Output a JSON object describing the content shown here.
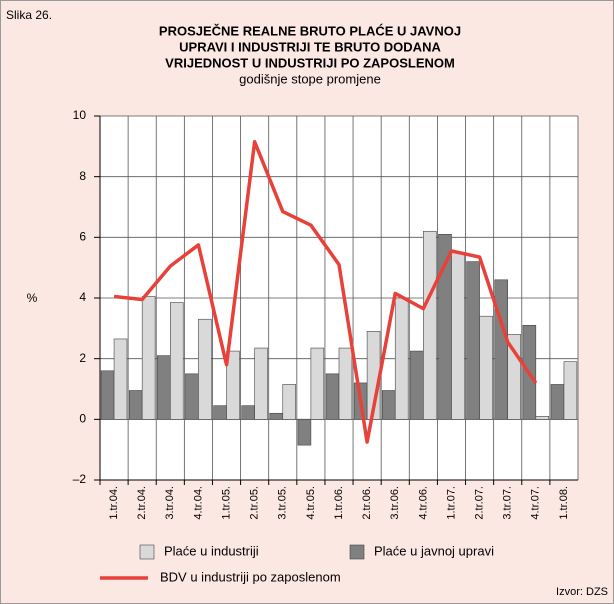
{
  "chart_data": {
    "type": "bar",
    "figure_label": "Slika 26.",
    "title_lines": [
      "PROSJEČNE REALNE BRUTO PLAĆE U JAVNOJ",
      "UPRAVI I INDUSTRIJI TE BRUTO DODANA",
      "VRIJEDNOST U INDUSTRIJI PO ZAPOSLENOM"
    ],
    "subtitle": "godišnje stope promjene",
    "y_label": "%",
    "source": "Izvor: DZS",
    "categories": [
      "1.tr.04.",
      "2.tr.04.",
      "3.tr.04.",
      "4.tr.04.",
      "1.tr.05.",
      "2.tr.05.",
      "3.tr.05.",
      "4.tr.05.",
      "1.tr.06.",
      "2.tr.06.",
      "3.tr.06.",
      "4.tr.06.",
      "1.tr.07.",
      "2.tr.07.",
      "3.tr.07.",
      "4.tr.07.",
      "1.tr.08."
    ],
    "series": [
      {
        "name": "Plaće u industriji",
        "type": "bar",
        "color": "#d9d9d9",
        "values": [
          2.65,
          4.05,
          3.85,
          3.3,
          2.25,
          2.35,
          1.15,
          2.35,
          2.35,
          2.9,
          4.0,
          6.2,
          5.5,
          3.4,
          2.8,
          0.1,
          1.9
        ]
      },
      {
        "name": "Plaće u javnoj upravi",
        "type": "bar",
        "color": "#808080",
        "values": [
          1.6,
          0.95,
          2.1,
          1.5,
          0.45,
          0.45,
          0.2,
          -0.85,
          1.5,
          1.2,
          0.95,
          2.25,
          6.1,
          5.2,
          4.6,
          3.1,
          1.15
        ]
      },
      {
        "name": "BDV u industriji po zaposlenom",
        "type": "line",
        "color": "#e8413a",
        "values": [
          4.05,
          3.95,
          5.05,
          5.75,
          1.8,
          9.15,
          6.85,
          6.4,
          5.1,
          -0.75,
          4.15,
          3.65,
          5.55,
          5.35,
          2.55,
          1.2,
          null
        ]
      }
    ],
    "ylim": [
      -2,
      10
    ],
    "yticks": [
      {
        "value": -2,
        "label": "–2"
      },
      0,
      2,
      4,
      6,
      8,
      10
    ],
    "grid": true
  }
}
